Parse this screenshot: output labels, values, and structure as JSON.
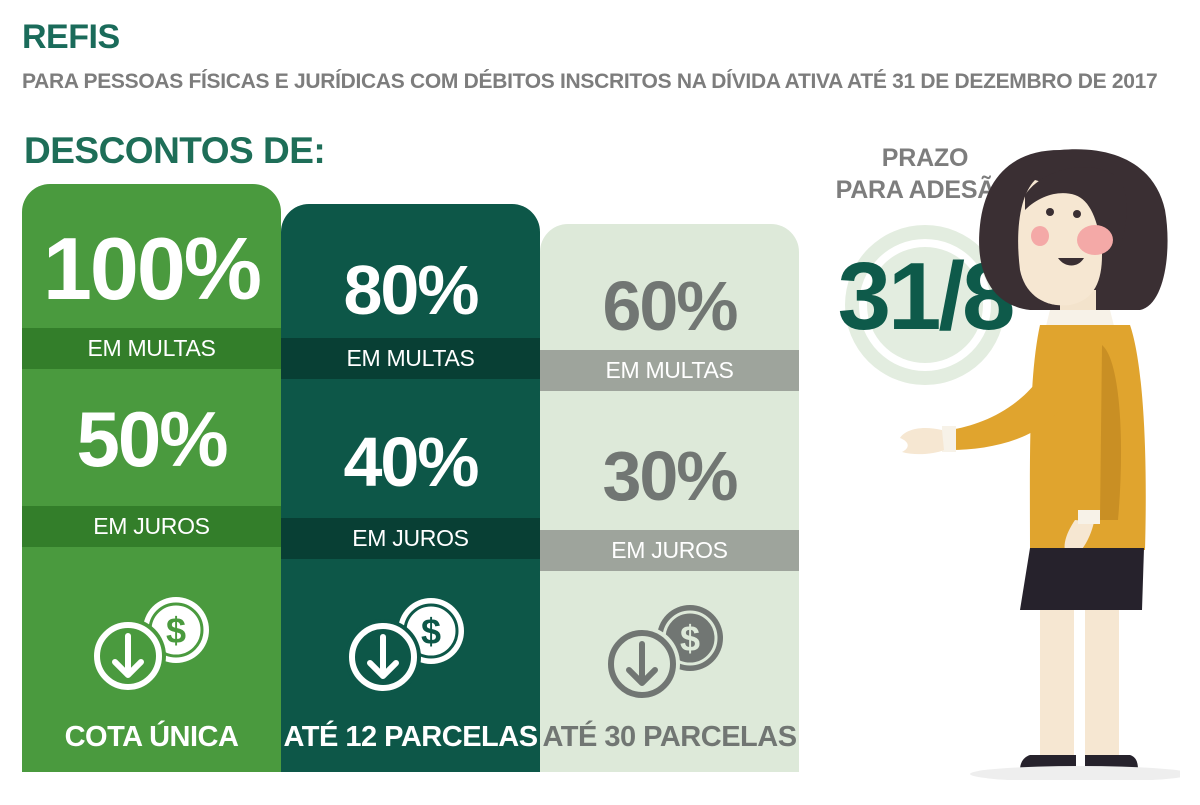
{
  "header": {
    "title": "REFIS",
    "subtitle": "PARA PESSOAS FÍSICAS E JURÍDICAS COM DÉBITOS INSCRITOS NA DÍVIDA ATIVA ATÉ 31 DE DEZEMBRO DE 2017"
  },
  "discounts": {
    "heading": "DESCONTOS DE:",
    "options": [
      {
        "fine_pct": "100%",
        "fine_label": "EM MULTAS",
        "interest_pct": "50%",
        "interest_label": "EM JUROS",
        "payment": "COTA ÚNICA",
        "color": "#4a9a3e"
      },
      {
        "fine_pct": "80%",
        "fine_label": "EM MULTAS",
        "interest_pct": "40%",
        "interest_label": "EM JUROS",
        "payment": "ATÉ 12 PARCELAS",
        "color": "#0d5748"
      },
      {
        "fine_pct": "60%",
        "fine_label": "EM MULTAS",
        "interest_pct": "30%",
        "interest_label": "EM JUROS",
        "payment": "ATÉ 30 PARCELAS",
        "color": "#dde9d9"
      }
    ]
  },
  "deadline": {
    "label_line1": "PRAZO",
    "label_line2": "PARA ADESÃO",
    "date": "31/8"
  },
  "icons": [
    "down-arrow-circle-icon",
    "dollar-coin-icon",
    "woman-illustration"
  ],
  "colors": {
    "title": "#1a6b5a",
    "subtitle": "#7d7d7d",
    "date": "#0e5a4a"
  }
}
